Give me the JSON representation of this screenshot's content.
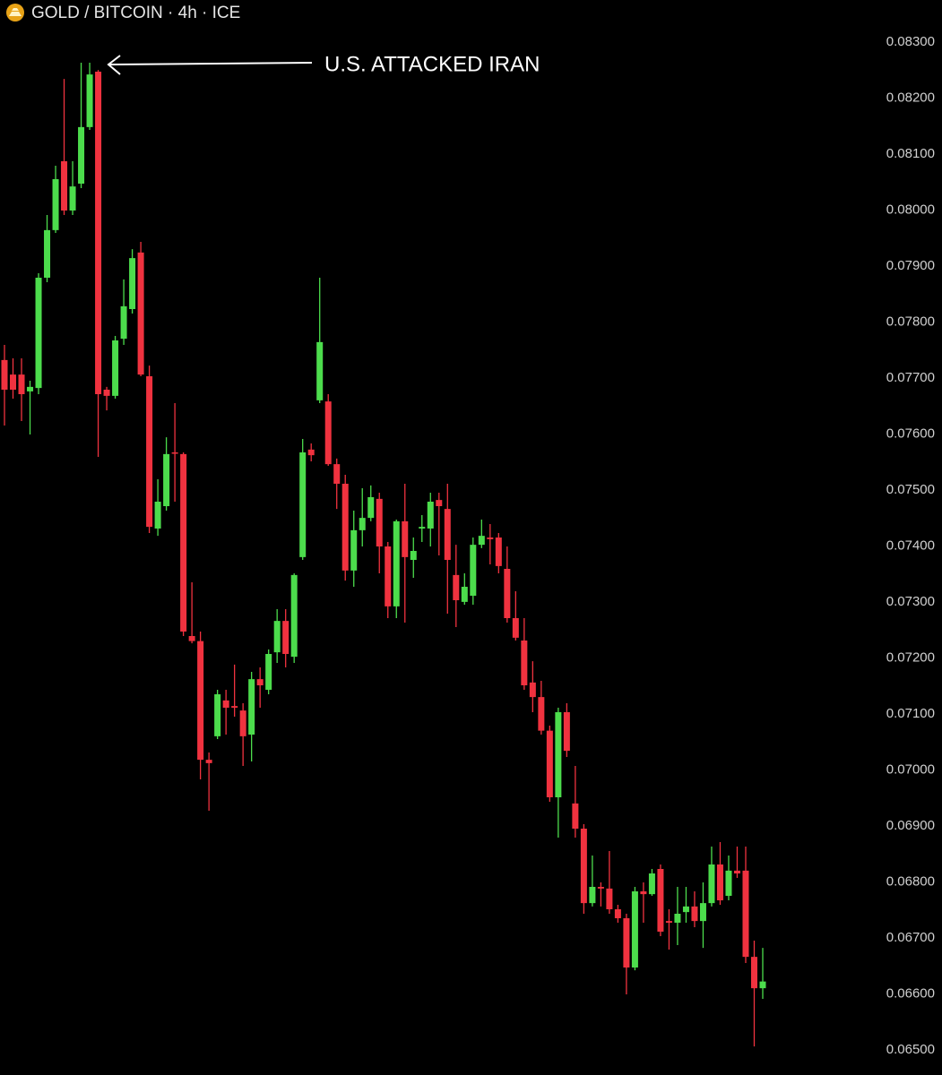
{
  "chart_data": {
    "type": "candlestick",
    "title": "GOLD / BITCOIN · 4h · ICE",
    "annotation": "U.S. ATTACKED IRAN",
    "up_color": "#4cdc4c",
    "down_color": "#f0323f",
    "ylim": [
      0.06455,
      0.08375
    ],
    "yticks": [
      {
        "value": 0.083,
        "label": "0.08300"
      },
      {
        "value": 0.082,
        "label": "0.08200"
      },
      {
        "value": 0.081,
        "label": "0.08100"
      },
      {
        "value": 0.08,
        "label": "0.08000"
      },
      {
        "value": 0.079,
        "label": "0.07900"
      },
      {
        "value": 0.078,
        "label": "0.07800"
      },
      {
        "value": 0.077,
        "label": "0.07700"
      },
      {
        "value": 0.076,
        "label": "0.07600"
      },
      {
        "value": 0.075,
        "label": "0.07500"
      },
      {
        "value": 0.074,
        "label": "0.07400"
      },
      {
        "value": 0.073,
        "label": "0.07300"
      },
      {
        "value": 0.072,
        "label": "0.07200"
      },
      {
        "value": 0.071,
        "label": "0.07100"
      },
      {
        "value": 0.07,
        "label": "0.07000"
      },
      {
        "value": 0.069,
        "label": "0.06900"
      },
      {
        "value": 0.068,
        "label": "0.06800"
      },
      {
        "value": 0.067,
        "label": "0.06700"
      },
      {
        "value": 0.066,
        "label": "0.06600"
      },
      {
        "value": 0.065,
        "label": "0.06500"
      }
    ],
    "open": [
      0.07732,
      0.07706,
      0.07706,
      0.07676,
      0.07682,
      0.07879,
      0.07964,
      0.08087,
      0.07999,
      0.08047,
      0.08148,
      0.08247,
      0.07679,
      0.07668,
      0.0777,
      0.07823,
      0.07924,
      0.07703,
      0.07431,
      0.07471,
      0.07567,
      0.07564,
      0.07239,
      0.0723,
      0.07018,
      0.0706,
      0.07124,
      0.07114,
      0.07106,
      0.07063,
      0.07162,
      0.07143,
      0.0721,
      0.07266,
      0.07202,
      0.0738,
      0.07572,
      0.0766,
      0.07658,
      0.07546,
      0.07511,
      0.07356,
      0.07428,
      0.0745,
      0.07484,
      0.07399,
      0.07292,
      0.07444,
      0.07375,
      0.07431,
      0.07431,
      0.07482,
      0.07466,
      0.07348,
      0.073,
      0.07311,
      0.07402,
      0.07415,
      0.07415,
      0.07359,
      0.07271,
      0.07231,
      0.07156,
      0.0713,
      0.0707,
      0.06951,
      0.07103,
      0.0694,
      0.06895,
      0.06762,
      0.06791,
      0.06788,
      0.06751,
      0.06735,
      0.06647,
      0.06783,
      0.06778,
      0.06823,
      0.0673,
      0.06727,
      0.06746,
      0.06756,
      0.0673,
      0.06762,
      0.06831,
      0.06775,
      0.0682,
      0.0682,
      0.06666,
      0.0661
    ],
    "high": [
      0.07759,
      0.07735,
      0.07735,
      0.07695,
      0.07887,
      0.07991,
      0.08079,
      0.08234,
      0.08087,
      0.08263,
      0.08263,
      0.0825,
      0.07684,
      0.07775,
      0.07876,
      0.0793,
      0.07943,
      0.07722,
      0.07519,
      0.07594,
      0.07655,
      0.07567,
      0.07335,
      0.07247,
      0.07031,
      0.07143,
      0.07143,
      0.07188,
      0.07119,
      0.07175,
      0.07183,
      0.07215,
      0.07287,
      0.07287,
      0.07351,
      0.07591,
      0.07583,
      0.07879,
      0.07671,
      0.07556,
      0.07527,
      0.07463,
      0.07503,
      0.07508,
      0.07495,
      0.07407,
      0.07447,
      0.07511,
      0.07415,
      0.07455,
      0.07495,
      0.07495,
      0.07511,
      0.07402,
      0.07351,
      0.07415,
      0.07447,
      0.07439,
      0.07423,
      0.07399,
      0.07319,
      0.07271,
      0.07194,
      0.07159,
      0.07079,
      0.07111,
      0.07119,
      0.07007,
      0.06903,
      0.06847,
      0.06799,
      0.06855,
      0.06759,
      0.06743,
      0.06791,
      0.06799,
      0.06823,
      0.06831,
      0.06751,
      0.06791,
      0.06791,
      0.06783,
      0.06799,
      0.06863,
      0.06871,
      0.06847,
      0.06863,
      0.06863,
      0.06695,
      0.06682
    ],
    "low": [
      0.07615,
      0.07663,
      0.07623,
      0.07599,
      0.07671,
      0.07871,
      0.07959,
      0.07991,
      0.07991,
      0.08039,
      0.08143,
      0.07559,
      0.07642,
      0.07663,
      0.07759,
      0.07815,
      0.07703,
      0.07423,
      0.07418,
      0.07463,
      0.07479,
      0.07239,
      0.07226,
      0.06983,
      0.06927,
      0.07055,
      0.07063,
      0.07095,
      0.07007,
      0.07015,
      0.07111,
      0.07135,
      0.07191,
      0.07183,
      0.07191,
      0.07375,
      0.07551,
      0.07655,
      0.07543,
      0.07466,
      0.07338,
      0.07327,
      0.07399,
      0.07444,
      0.07351,
      0.07271,
      0.07271,
      0.07263,
      0.07343,
      0.07407,
      0.07399,
      0.07383,
      0.07279,
      0.07255,
      0.07295,
      0.07295,
      0.07396,
      0.07367,
      0.07351,
      0.07263,
      0.07231,
      0.07143,
      0.07103,
      0.07063,
      0.06943,
      0.06879,
      0.07023,
      0.06879,
      0.06743,
      0.06756,
      0.06756,
      0.06743,
      0.06727,
      0.06599,
      0.06642,
      0.06727,
      0.06775,
      0.06703,
      0.06679,
      0.06687,
      0.06727,
      0.06719,
      0.06682,
      0.06756,
      0.06759,
      0.06767,
      0.06807,
      0.06655,
      0.06506,
      0.06591
    ],
    "close": [
      0.07679,
      0.07679,
      0.07671,
      0.07684,
      0.07879,
      0.07964,
      0.08055,
      0.07999,
      0.08042,
      0.08148,
      0.08242,
      0.07671,
      0.07668,
      0.07767,
      0.07828,
      0.07914,
      0.07706,
      0.07434,
      0.07479,
      0.07564,
      0.07566,
      0.07247,
      0.0723,
      0.07018,
      0.07012,
      0.07135,
      0.07111,
      0.07111,
      0.0706,
      0.07162,
      0.07151,
      0.07207,
      0.07266,
      0.07207,
      0.07348,
      0.07567,
      0.07562,
      0.07764,
      0.07546,
      0.07511,
      0.07356,
      0.07428,
      0.0745,
      0.07487,
      0.07399,
      0.07292,
      0.07444,
      0.0738,
      0.07391,
      0.07434,
      0.07479,
      0.07471,
      0.07375,
      0.07303,
      0.07327,
      0.07402,
      0.07418,
      0.07412,
      0.07364,
      0.07271,
      0.07236,
      0.07151,
      0.0713,
      0.0707,
      0.06951,
      0.07103,
      0.07034,
      0.06895,
      0.06762,
      0.06791,
      0.06788,
      0.06751,
      0.06735,
      0.06647,
      0.06783,
      0.06778,
      0.06815,
      0.06711,
      0.06727,
      0.06743,
      0.06756,
      0.0673,
      0.06762,
      0.06831,
      0.06767,
      0.0682,
      0.06815,
      0.06666,
      0.0661,
      0.06622
    ]
  }
}
